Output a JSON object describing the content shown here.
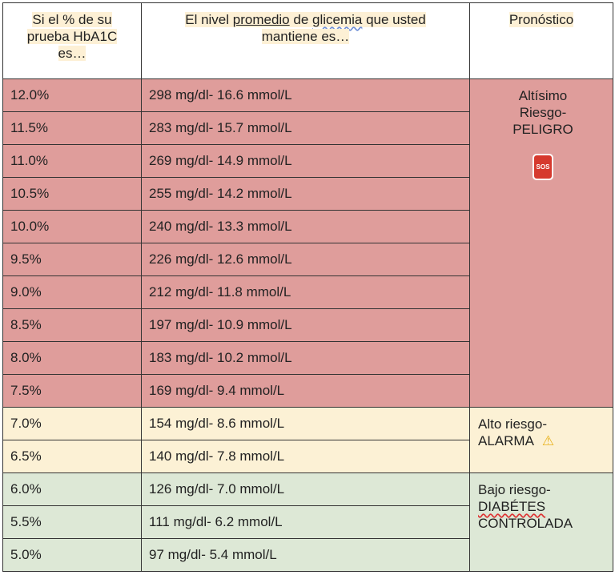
{
  "header": {
    "col1": [
      "Si el % de su",
      "prueba HbA1C",
      "es…"
    ],
    "col2_pre": "El nivel ",
    "col2_underline": "promedio",
    "col2_mid": " de ",
    "col2_wavy": "glicemia",
    "col2_post": " que usted",
    "col2_line2": "mantiene es…",
    "col3": "Pronóstico"
  },
  "rows": [
    {
      "hba1c": "12.0%",
      "glucose": "298 mg/dl- 16.6 mmol/L"
    },
    {
      "hba1c": "11.5%",
      "glucose": "283 mg/dl- 15.7 mmol/L"
    },
    {
      "hba1c": "11.0%",
      "glucose": "269 mg/dl- 14.9 mmol/L"
    },
    {
      "hba1c": "10.5%",
      "glucose": "255 mg/dl- 14.2 mmol/L"
    },
    {
      "hba1c": "10.0%",
      "glucose": "240 mg/dl- 13.3 mmol/L"
    },
    {
      "hba1c": "9.5%",
      "glucose": "226 mg/dl- 12.6 mmol/L"
    },
    {
      "hba1c": "9.0%",
      "glucose": "212 mg/dl- 11.8 mmol/L"
    },
    {
      "hba1c": "8.5%",
      "glucose": "197 mg/dl- 10.9 mmol/L"
    },
    {
      "hba1c": "8.0%",
      "glucose": "183 mg/dl- 10.2 mmol/L"
    },
    {
      "hba1c": "7.5%",
      "glucose": "169 mg/dl- 9.4 mmol/L"
    },
    {
      "hba1c": "7.0%",
      "glucose": "154 mg/dl- 8.6 mmol/L"
    },
    {
      "hba1c": "6.5%",
      "glucose": "140 mg/dl- 7.8 mmol/L"
    },
    {
      "hba1c": "6.0%",
      "glucose": "126 mg/dl- 7.0 mmol/L"
    },
    {
      "hba1c": "5.5%",
      "glucose": "111 mg/dl- 6.2 mmol/L"
    },
    {
      "hba1c": "5.0%",
      "glucose": "97 mg/dl- 5.4 mmol/L"
    }
  ],
  "prognosis": {
    "high": {
      "lines": [
        "Altísimo",
        "Riesgo-",
        "PELIGRO"
      ],
      "icon": "sos-icon",
      "icon_text": "SOS",
      "color": "#df9d9b"
    },
    "medium": {
      "line1": "Alto riesgo-",
      "line2": "ALARMA",
      "icon": "warning-icon",
      "icon_glyph": "⚠",
      "color": "#fcf1d5"
    },
    "low": {
      "line1": "Bajo riesgo-",
      "line2": "DIABÉTES",
      "line3": "CONTROLADA",
      "color": "#dde8d6"
    }
  }
}
